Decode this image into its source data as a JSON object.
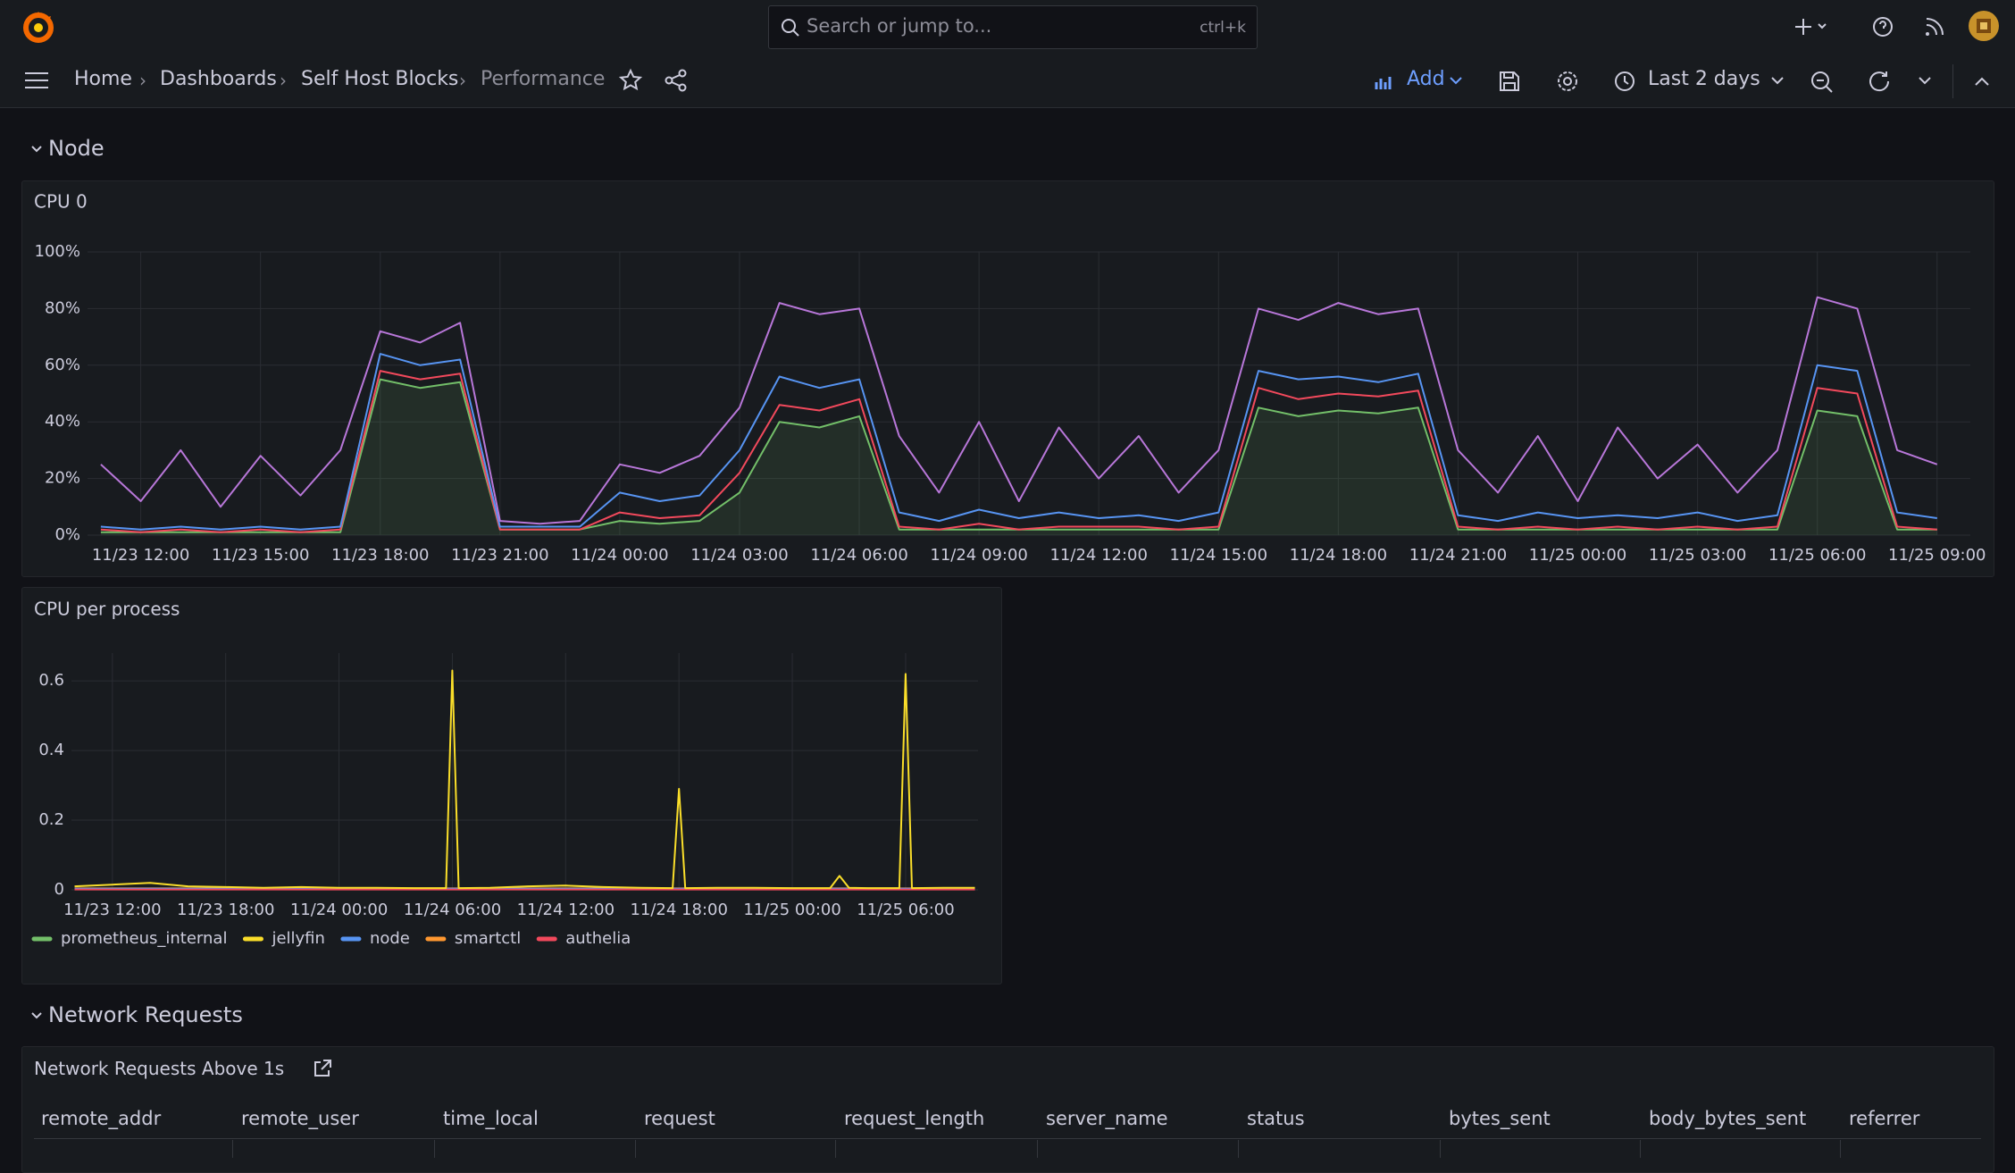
{
  "topbar": {
    "search_placeholder": "Search or jump to...",
    "shortcut": "ctrl+k"
  },
  "breadcrumbs": [
    "Home",
    "Dashboards",
    "Self Host Blocks",
    "Performance"
  ],
  "toolbar": {
    "add": "Add",
    "time_range": "Last 2 days"
  },
  "sections": [
    "Node",
    "Network Requests"
  ],
  "chart_data": [
    {
      "type": "line",
      "title": "CPU 0",
      "grid": true,
      "xlim": [
        "11/23 10:40",
        "11/25 09:50"
      ],
      "xticks": [
        "11/23 12:00",
        "11/23 15:00",
        "11/23 18:00",
        "11/23 21:00",
        "11/24 00:00",
        "11/24 03:00",
        "11/24 06:00",
        "11/24 09:00",
        "11/24 12:00",
        "11/24 15:00",
        "11/24 18:00",
        "11/24 21:00",
        "11/25 00:00",
        "11/25 03:00",
        "11/25 06:00",
        "11/25 09:00"
      ],
      "ylim": [
        0,
        100
      ],
      "yticks": [
        {
          "value": 0,
          "label": "0%"
        },
        {
          "value": 20,
          "label": "20%"
        },
        {
          "value": 40,
          "label": "40%"
        },
        {
          "value": 60,
          "label": "60%"
        },
        {
          "value": 80,
          "label": "80%"
        },
        {
          "value": 100,
          "label": "100%"
        }
      ],
      "x": [
        "11/23 11:00",
        "11/23 12:00",
        "11/23 13:00",
        "11/23 14:00",
        "11/23 15:00",
        "11/23 16:00",
        "11/23 17:00",
        "11/23 18:00",
        "11/23 19:00",
        "11/23 20:00",
        "11/23 21:00",
        "11/23 22:00",
        "11/23 23:00",
        "11/24 00:00",
        "11/24 01:00",
        "11/24 02:00",
        "11/24 03:00",
        "11/24 04:00",
        "11/24 05:00",
        "11/24 06:00",
        "11/24 07:00",
        "11/24 08:00",
        "11/24 09:00",
        "11/24 10:00",
        "11/24 11:00",
        "11/24 12:00",
        "11/24 13:00",
        "11/24 14:00",
        "11/24 15:00",
        "11/24 16:00",
        "11/24 17:00",
        "11/24 18:00",
        "11/24 19:00",
        "11/24 20:00",
        "11/24 21:00",
        "11/24 22:00",
        "11/24 23:00",
        "11/25 00:00",
        "11/25 01:00",
        "11/25 02:00",
        "11/25 03:00",
        "11/25 04:00",
        "11/25 05:00",
        "11/25 06:00",
        "11/25 07:00",
        "11/25 08:00",
        "11/25 09:00"
      ],
      "series": [
        {
          "color": "#73bf69",
          "area": true,
          "values": [
            1,
            1,
            1,
            1,
            1,
            1,
            1,
            55,
            52,
            54,
            2,
            2,
            2,
            5,
            4,
            5,
            15,
            40,
            38,
            42,
            2,
            2,
            2,
            2,
            2,
            2,
            2,
            2,
            2,
            45,
            42,
            44,
            43,
            45,
            2,
            2,
            2,
            2,
            2,
            2,
            2,
            2,
            2,
            44,
            42,
            2,
            2
          ]
        },
        {
          "color": "#f2495c",
          "values": [
            2,
            1,
            2,
            1,
            2,
            1,
            2,
            58,
            55,
            57,
            2,
            2,
            2,
            8,
            6,
            7,
            22,
            46,
            44,
            48,
            3,
            2,
            4,
            2,
            3,
            3,
            3,
            2,
            3,
            52,
            48,
            50,
            49,
            51,
            3,
            2,
            3,
            2,
            3,
            2,
            3,
            2,
            3,
            52,
            50,
            3,
            2
          ]
        },
        {
          "color": "#5794f2",
          "values": [
            3,
            2,
            3,
            2,
            3,
            2,
            3,
            64,
            60,
            62,
            3,
            3,
            3,
            15,
            12,
            14,
            30,
            56,
            52,
            55,
            8,
            5,
            9,
            6,
            8,
            6,
            7,
            5,
            8,
            58,
            55,
            56,
            54,
            57,
            7,
            5,
            8,
            6,
            7,
            6,
            8,
            5,
            7,
            60,
            58,
            8,
            6
          ]
        },
        {
          "color": "#b877d9",
          "values": [
            25,
            12,
            30,
            10,
            28,
            14,
            30,
            72,
            68,
            75,
            5,
            4,
            5,
            25,
            22,
            28,
            45,
            82,
            78,
            80,
            35,
            15,
            40,
            12,
            38,
            20,
            35,
            15,
            30,
            80,
            76,
            82,
            78,
            80,
            30,
            15,
            35,
            12,
            38,
            20,
            32,
            15,
            30,
            84,
            80,
            30,
            25
          ]
        }
      ]
    },
    {
      "type": "line",
      "title": "CPU per process",
      "grid": true,
      "xlim": [
        "11/23 09:50",
        "11/25 09:50"
      ],
      "xticks": [
        "11/23 12:00",
        "11/23 18:00",
        "11/24 00:00",
        "11/24 06:00",
        "11/24 12:00",
        "11/24 18:00",
        "11/25 00:00",
        "11/25 06:00"
      ],
      "ylim": [
        0,
        0.68
      ],
      "yticks": [
        0,
        0.2,
        0.4,
        0.6
      ],
      "x": [
        "11/23 10:00",
        "11/23 12:00",
        "11/23 14:00",
        "11/23 16:00",
        "11/23 18:00",
        "11/23 20:00",
        "11/23 22:00",
        "11/24 00:00",
        "11/24 02:00",
        "11/24 04:00",
        "11/24 05:40",
        "11/24 06:00",
        "11/24 06:20",
        "11/24 08:00",
        "11/24 10:00",
        "11/24 12:00",
        "11/24 14:00",
        "11/24 16:00",
        "11/24 17:40",
        "11/24 18:00",
        "11/24 18:20",
        "11/24 20:00",
        "11/24 22:00",
        "11/25 00:00",
        "11/25 02:00",
        "11/25 02:30",
        "11/25 03:00",
        "11/25 04:00",
        "11/25 05:40",
        "11/25 06:00",
        "11/25 06:20",
        "11/25 08:00",
        "11/25 09:40"
      ],
      "series": [
        {
          "name": "prometheus_internal",
          "color": "#73bf69",
          "values": [
            0.002,
            0.002,
            0.002,
            0.002,
            0.002,
            0.002,
            0.002,
            0.002,
            0.002,
            0.002,
            0.002,
            0.002,
            0.002,
            0.002,
            0.002,
            0.002,
            0.002,
            0.002,
            0.002,
            0.002,
            0.002,
            0.002,
            0.002,
            0.002,
            0.002,
            0.002,
            0.002,
            0.002,
            0.002,
            0.002,
            0.002,
            0.002,
            0.002
          ]
        },
        {
          "name": "smartctl",
          "color": "#ff9830",
          "values": [
            0.004,
            0.004,
            0.004,
            0.004,
            0.004,
            0.004,
            0.004,
            0.004,
            0.004,
            0.004,
            0.004,
            0.004,
            0.004,
            0.004,
            0.004,
            0.004,
            0.004,
            0.004,
            0.004,
            0.004,
            0.004,
            0.004,
            0.004,
            0.004,
            0.004,
            0.004,
            0.004,
            0.004,
            0.004,
            0.004,
            0.004,
            0.004,
            0.004
          ]
        },
        {
          "name": "node",
          "color": "#5794f2",
          "values": [
            0.003,
            0.003,
            0.003,
            0.003,
            0.003,
            0.003,
            0.003,
            0.003,
            0.003,
            0.003,
            0.003,
            0.003,
            0.003,
            0.003,
            0.003,
            0.003,
            0.003,
            0.003,
            0.003,
            0.003,
            0.003,
            0.003,
            0.003,
            0.003,
            0.003,
            0.003,
            0.003,
            0.003,
            0.003,
            0.003,
            0.003,
            0.003,
            0.003
          ]
        },
        {
          "name": "authelia",
          "color": "#f2495c",
          "values": [
            0.001,
            0.001,
            0.001,
            0.001,
            0.001,
            0.001,
            0.001,
            0.001,
            0.001,
            0.001,
            0.001,
            0.001,
            0.001,
            0.001,
            0.001,
            0.001,
            0.001,
            0.001,
            0.001,
            0.001,
            0.001,
            0.001,
            0.001,
            0.001,
            0.001,
            0.001,
            0.001,
            0.001,
            0.001,
            0.001,
            0.001,
            0.001,
            0.001
          ]
        },
        {
          "name": "jellyfin",
          "color": "#fade2a",
          "values": [
            0.01,
            0.015,
            0.02,
            0.01,
            0.008,
            0.006,
            0.008,
            0.006,
            0.006,
            0.005,
            0.005,
            0.63,
            0.005,
            0.006,
            0.01,
            0.012,
            0.008,
            0.006,
            0.005,
            0.29,
            0.005,
            0.006,
            0.006,
            0.005,
            0.005,
            0.04,
            0.006,
            0.005,
            0.005,
            0.62,
            0.005,
            0.006,
            0.006
          ]
        }
      ],
      "legend_order": [
        0,
        4,
        2,
        1,
        3
      ]
    }
  ],
  "table": {
    "title": "Network Requests Above 1s",
    "columns": [
      "remote_addr",
      "remote_user",
      "time_local",
      "request",
      "request_length",
      "server_name",
      "status",
      "bytes_sent",
      "body_bytes_sent",
      "referrer"
    ]
  }
}
